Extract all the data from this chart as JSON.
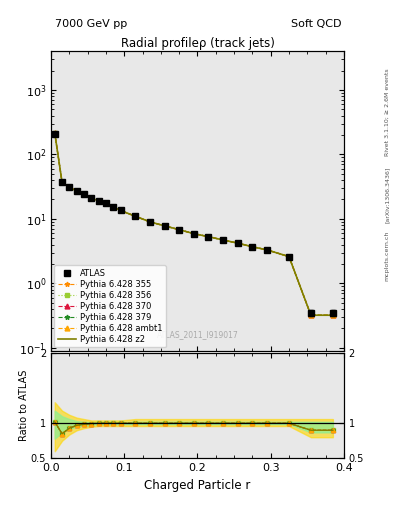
{
  "title": "Radial profileρ (track jets)",
  "top_left_label": "7000 GeV pp",
  "top_right_label": "Soft QCD",
  "right_label_top": "Rivet 3.1.10; ≥ 2.6M events",
  "right_label_mid": "[arXiv:1306.3436]",
  "right_label_bot": "mcplots.cern.ch",
  "watermark": "ATLAS_2011_I919017",
  "xlabel": "Charged Particle r",
  "ylabel_ratio": "Ratio to ATLAS",
  "xlim": [
    0.0,
    0.4
  ],
  "ylim_main": [
    0.09,
    4000
  ],
  "ylim_ratio": [
    0.5,
    2.0
  ],
  "x_data": [
    0.005,
    0.015,
    0.025,
    0.035,
    0.045,
    0.055,
    0.065,
    0.075,
    0.085,
    0.095,
    0.115,
    0.135,
    0.155,
    0.175,
    0.195,
    0.215,
    0.235,
    0.255,
    0.275,
    0.295,
    0.325,
    0.355,
    0.385
  ],
  "atlas_y": [
    210,
    37,
    31,
    27,
    24,
    21,
    19,
    17.5,
    15.5,
    13.5,
    11,
    9,
    7.8,
    6.8,
    5.9,
    5.3,
    4.7,
    4.2,
    3.7,
    3.3,
    2.6,
    0.35,
    0.35
  ],
  "atlas_yerr": [
    15,
    2.5,
    2.0,
    1.8,
    1.5,
    1.3,
    1.2,
    1.1,
    1.0,
    0.9,
    0.7,
    0.6,
    0.5,
    0.45,
    0.4,
    0.35,
    0.3,
    0.28,
    0.25,
    0.22,
    0.18,
    0.04,
    0.04
  ],
  "pythia_355_y": [
    215,
    37,
    31,
    27,
    24,
    21,
    19,
    17.5,
    15.5,
    13.5,
    11,
    9,
    7.8,
    6.8,
    5.9,
    5.3,
    4.7,
    4.2,
    3.7,
    3.3,
    2.6,
    0.32,
    0.32
  ],
  "pythia_356_y": [
    215,
    37,
    31,
    27,
    24,
    21,
    19,
    17.5,
    15.5,
    13.5,
    11,
    9,
    7.8,
    6.8,
    5.9,
    5.3,
    4.7,
    4.2,
    3.7,
    3.3,
    2.6,
    0.32,
    0.32
  ],
  "pythia_370_y": [
    215,
    37,
    31,
    27,
    24,
    21,
    19,
    17.5,
    15.5,
    13.5,
    11,
    9,
    7.8,
    6.8,
    5.9,
    5.3,
    4.7,
    4.2,
    3.7,
    3.3,
    2.6,
    0.32,
    0.32
  ],
  "pythia_379_y": [
    215,
    37,
    31,
    27,
    24,
    21,
    19,
    17.5,
    15.5,
    13.5,
    11,
    9,
    7.8,
    6.8,
    5.9,
    5.3,
    4.7,
    4.2,
    3.7,
    3.3,
    2.6,
    0.32,
    0.32
  ],
  "pythia_ambt1_y": [
    215,
    37,
    31,
    27,
    24,
    21,
    19,
    17.5,
    15.5,
    13.5,
    11,
    9,
    7.8,
    6.8,
    5.9,
    5.3,
    4.7,
    4.2,
    3.7,
    3.3,
    2.6,
    0.32,
    0.32
  ],
  "pythia_z2_y": [
    215,
    37,
    31,
    27,
    24,
    21,
    19,
    17.5,
    15.5,
    13.5,
    11,
    9,
    7.8,
    6.8,
    5.9,
    5.3,
    4.7,
    4.2,
    3.7,
    3.3,
    2.6,
    0.32,
    0.32
  ],
  "ratio_355": [
    1.02,
    0.85,
    0.93,
    0.97,
    0.985,
    0.995,
    1.0,
    1.0,
    1.0,
    1.0,
    1.0,
    1.0,
    1.0,
    1.0,
    1.0,
    1.0,
    1.0,
    1.0,
    1.0,
    1.0,
    1.0,
    0.9,
    0.9
  ],
  "ratio_356": [
    1.02,
    0.85,
    0.93,
    0.97,
    0.985,
    0.995,
    1.0,
    1.0,
    1.0,
    1.0,
    1.0,
    1.0,
    1.0,
    1.0,
    1.0,
    1.0,
    1.0,
    1.0,
    1.0,
    1.0,
    1.0,
    0.9,
    0.9
  ],
  "ratio_370": [
    1.02,
    0.85,
    0.93,
    0.97,
    0.985,
    0.995,
    1.0,
    1.0,
    1.0,
    1.0,
    1.0,
    1.0,
    1.0,
    1.0,
    1.0,
    1.0,
    1.0,
    1.0,
    1.0,
    1.0,
    1.0,
    0.9,
    0.9
  ],
  "ratio_379": [
    1.02,
    0.85,
    0.93,
    0.97,
    0.985,
    0.995,
    1.0,
    1.0,
    1.0,
    1.0,
    1.0,
    1.0,
    1.0,
    1.0,
    1.0,
    1.0,
    1.0,
    1.0,
    1.0,
    1.0,
    1.0,
    0.9,
    0.9
  ],
  "ratio_ambt1": [
    1.02,
    0.85,
    0.93,
    0.97,
    0.985,
    0.995,
    1.0,
    1.0,
    1.0,
    1.0,
    1.0,
    1.0,
    1.0,
    1.0,
    1.0,
    1.0,
    1.0,
    1.0,
    1.0,
    1.0,
    1.0,
    0.9,
    0.9
  ],
  "ratio_z2": [
    1.02,
    0.85,
    0.93,
    0.97,
    0.985,
    0.995,
    1.0,
    1.0,
    1.0,
    1.0,
    1.0,
    1.0,
    1.0,
    1.0,
    1.0,
    1.0,
    1.0,
    1.0,
    1.0,
    1.0,
    1.0,
    0.9,
    0.9
  ],
  "yellow_lo": [
    0.6,
    0.75,
    0.84,
    0.9,
    0.93,
    0.95,
    0.96,
    0.96,
    0.96,
    0.96,
    0.96,
    0.96,
    0.96,
    0.96,
    0.96,
    0.96,
    0.96,
    0.96,
    0.96,
    0.96,
    0.96,
    0.8,
    0.8
  ],
  "yellow_hi": [
    1.3,
    1.18,
    1.12,
    1.08,
    1.06,
    1.04,
    1.04,
    1.04,
    1.04,
    1.04,
    1.06,
    1.06,
    1.06,
    1.06,
    1.06,
    1.06,
    1.06,
    1.06,
    1.06,
    1.06,
    1.06,
    1.06,
    1.06
  ],
  "green_lo": [
    0.78,
    0.87,
    0.92,
    0.95,
    0.97,
    0.98,
    0.99,
    0.99,
    0.99,
    0.99,
    0.99,
    0.99,
    0.99,
    0.99,
    0.99,
    0.99,
    0.99,
    0.99,
    0.99,
    0.99,
    0.99,
    0.87,
    0.87
  ],
  "green_hi": [
    1.18,
    1.1,
    1.06,
    1.03,
    1.02,
    1.01,
    1.01,
    1.01,
    1.01,
    1.01,
    1.02,
    1.02,
    1.02,
    1.02,
    1.02,
    1.02,
    1.02,
    1.02,
    1.02,
    1.02,
    1.02,
    1.02,
    1.02
  ],
  "color_355": "#FF8C00",
  "color_356": "#9ACD32",
  "color_370": "#DC143C",
  "color_379": "#228B22",
  "color_ambt1": "#FFA500",
  "color_z2": "#808000",
  "color_atlas": "#000000",
  "bg_color": "#e8e8e8",
  "band_color_yellow": "#FFD700",
  "band_color_green": "#90EE90"
}
